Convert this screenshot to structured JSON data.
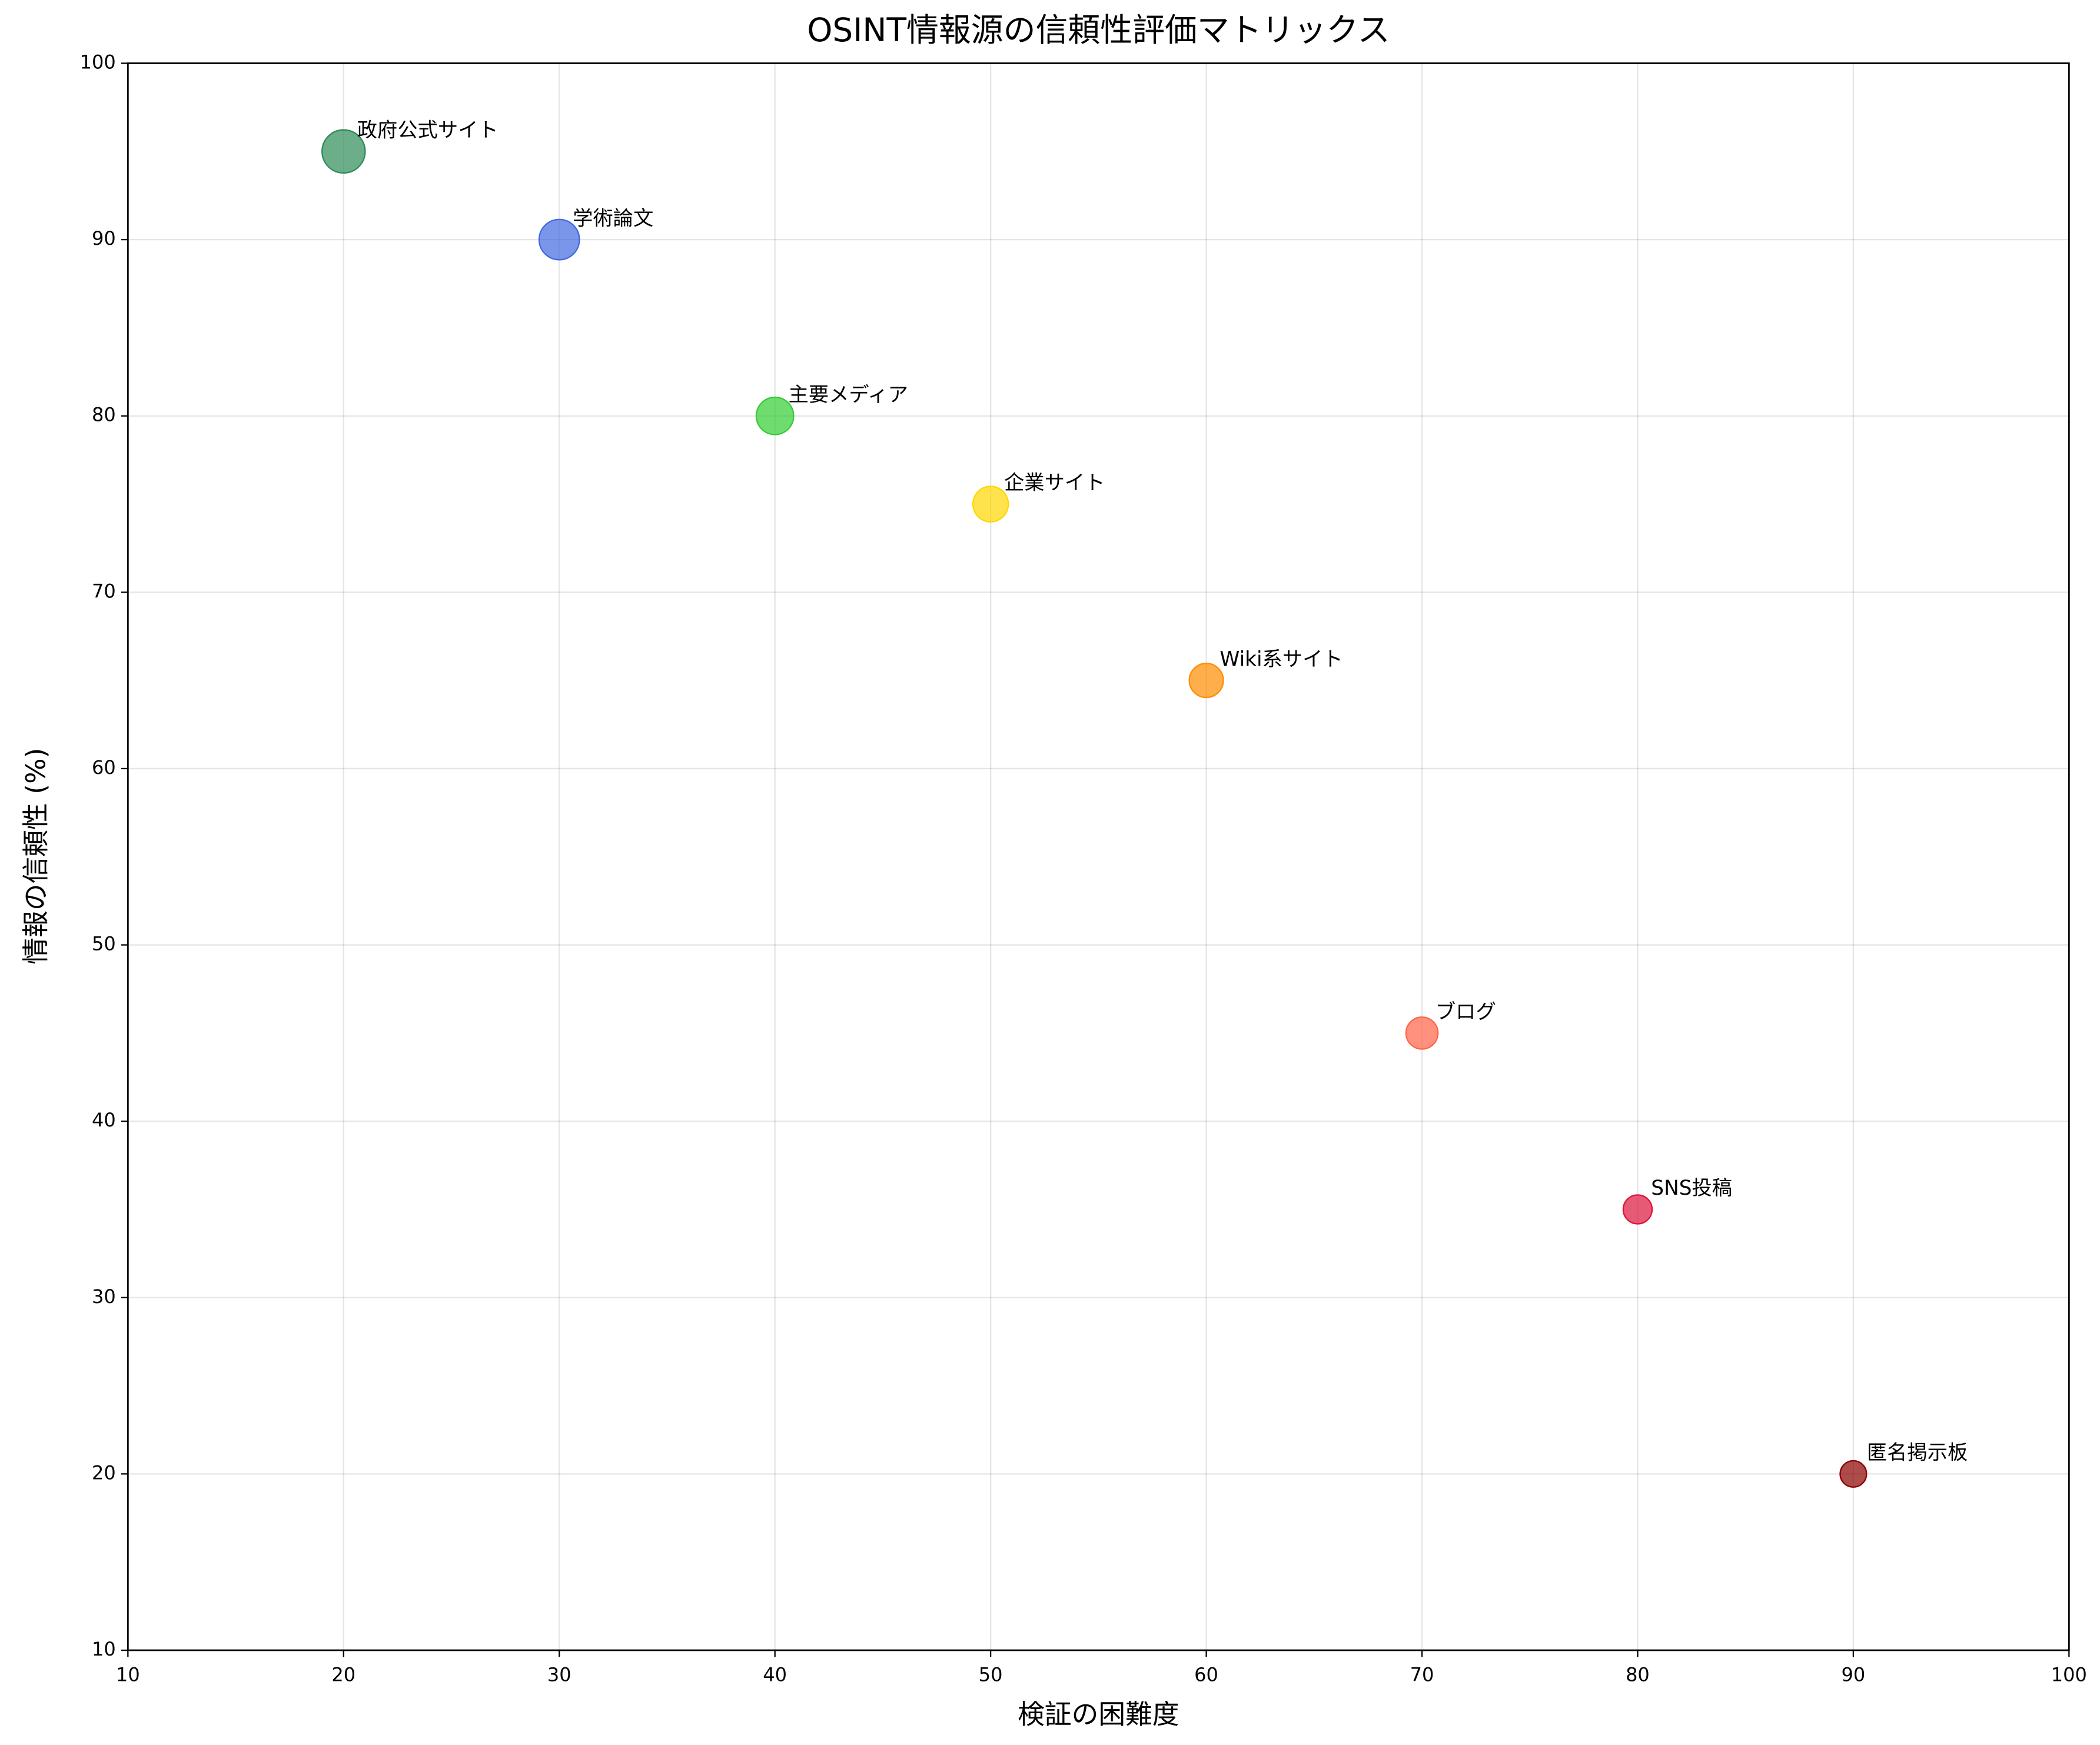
{
  "chart_data": {
    "type": "scatter",
    "title": "OSINT情報源の信頼性評価マトリックス",
    "xlabel": "検証の困難度",
    "ylabel": "情報の信頼性 (%)",
    "labels": [
      "政府公式サイト",
      "学術論文",
      "主要メディア",
      "企業サイト",
      "Wiki系サイト",
      "ブログ",
      "SNS投稿",
      "匿名掲示板"
    ],
    "x": [
      20,
      30,
      40,
      50,
      60,
      70,
      80,
      90
    ],
    "values": [
      95,
      90,
      80,
      75,
      65,
      45,
      35,
      20
    ],
    "sizes": [
      400,
      350,
      300,
      270,
      250,
      220,
      180,
      150
    ],
    "colors": [
      "#2e8b57",
      "#4169e1",
      "#32cd32",
      "#ffd700",
      "#ff8c00",
      "#ff6347",
      "#dc143c",
      "#8b0000"
    ],
    "xlim": [
      10,
      100
    ],
    "ylim": [
      10,
      100
    ],
    "xticks": [
      10,
      20,
      30,
      40,
      50,
      60,
      70,
      80,
      90,
      100
    ],
    "yticks": [
      10,
      20,
      30,
      40,
      50,
      60,
      70,
      80,
      90,
      100
    ],
    "grid": true
  }
}
